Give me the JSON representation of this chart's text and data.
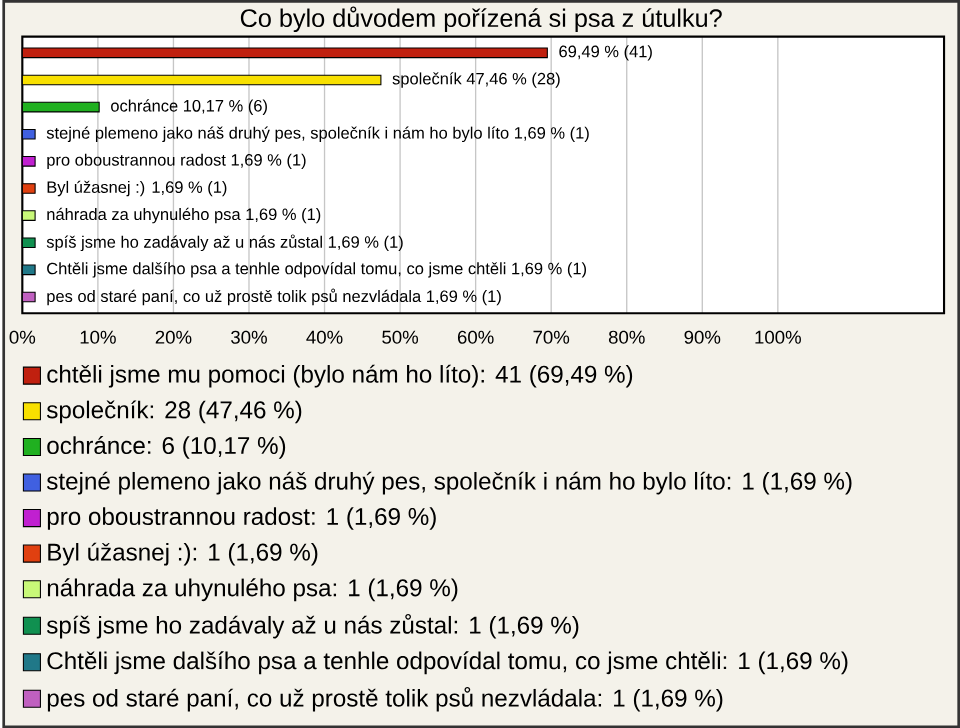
{
  "chart_data": {
    "type": "bar",
    "orientation": "horizontal",
    "title": "Co bylo důvodem pořízená si psa z útulku?",
    "categories": [
      null,
      null,
      null,
      null,
      null,
      null,
      null,
      null,
      null,
      null
    ],
    "xlim": [
      0,
      122
    ],
    "xticks": [
      {
        "value": 0,
        "label": "0%"
      },
      {
        "value": 10,
        "label": "10%"
      },
      {
        "value": 20,
        "label": "20%"
      },
      {
        "value": 30,
        "label": "30%"
      },
      {
        "value": 40,
        "label": "40%"
      },
      {
        "value": 50,
        "label": "50%"
      },
      {
        "value": 60,
        "label": "60%"
      },
      {
        "value": 70,
        "label": "70%"
      },
      {
        "value": 80,
        "label": "80%"
      },
      {
        "value": 90,
        "label": "90%"
      },
      {
        "value": 100,
        "label": "100%"
      }
    ],
    "grid": "x",
    "legend": "bottom",
    "tick_labels": "x",
    "series": [
      {
        "name": "chtěli jsme mu pomoci (bylo nám ho líto): 41 (69,49 %)",
        "color": "#c0200f",
        "values": [
          69.49,
          null,
          null,
          null,
          null,
          null,
          null,
          null,
          null,
          null
        ],
        "value_labels": [
          "69,49 % (41)",
          null,
          null,
          null,
          null,
          null,
          null,
          null,
          null,
          null
        ]
      },
      {
        "name": "společník: 28 (47,46 %)",
        "color": "#f8e000",
        "values": [
          null,
          47.46,
          null,
          null,
          null,
          null,
          null,
          null,
          null,
          null
        ],
        "value_labels": [
          null,
          "společník 47,46 % (28)",
          null,
          null,
          null,
          null,
          null,
          null,
          null,
          null
        ]
      },
      {
        "name": "ochránce: 6 (10,17 %)",
        "color": "#20b020",
        "values": [
          null,
          null,
          10.17,
          null,
          null,
          null,
          null,
          null,
          null,
          null
        ],
        "value_labels": [
          null,
          null,
          "ochránce 10,17 % (6)",
          null,
          null,
          null,
          null,
          null,
          null,
          null
        ]
      },
      {
        "name": "stejné plemeno jako náš druhý pes, společník i nám ho bylo líto: 1 (1,69 %)",
        "color": "#4060e0",
        "values": [
          null,
          null,
          null,
          1.69,
          null,
          null,
          null,
          null,
          null,
          null
        ],
        "value_labels": [
          null,
          null,
          null,
          "stejné plemeno jako náš druhý pes, společník i nám ho bylo líto 1,69 % (1)",
          null,
          null,
          null,
          null,
          null,
          null
        ]
      },
      {
        "name": "pro oboustrannou radost: 1 (1,69 %)",
        "color": "#c020d0",
        "values": [
          null,
          null,
          null,
          null,
          1.69,
          null,
          null,
          null,
          null,
          null
        ],
        "value_labels": [
          null,
          null,
          null,
          null,
          "pro oboustrannou radost 1,69 % (1)",
          null,
          null,
          null,
          null,
          null
        ]
      },
      {
        "name": "Byl úžasnej :): 1 (1,69 %)",
        "color": "#e04010",
        "values": [
          null,
          null,
          null,
          null,
          null,
          1.69,
          null,
          null,
          null,
          null
        ],
        "value_labels": [
          null,
          null,
          null,
          null,
          null,
          "Byl úžasnej :) 1,69 % (1)",
          null,
          null,
          null,
          null
        ]
      },
      {
        "name": "náhrada za uhynulého psa: 1 (1,69 %)",
        "color": "#c8f878",
        "values": [
          null,
          null,
          null,
          null,
          null,
          null,
          1.69,
          null,
          null,
          null
        ],
        "value_labels": [
          null,
          null,
          null,
          null,
          null,
          null,
          "náhrada za uhynulého psa 1,69 % (1)",
          null,
          null,
          null
        ]
      },
      {
        "name": "spíš jsme ho zadávaly až  u nás zůstal: 1 (1,69 %)",
        "color": "#109050",
        "values": [
          null,
          null,
          null,
          null,
          null,
          null,
          null,
          1.69,
          null,
          null
        ],
        "value_labels": [
          null,
          null,
          null,
          null,
          null,
          null,
          null,
          "spíš jsme ho zadávaly až  u nás zůstal 1,69 % (1)",
          null,
          null
        ]
      },
      {
        "name": "Chtěli jsme dalšího psa a tenhle odpovídal tomu, co jsme chtěli: 1 (1,69 %)",
        "color": "#207888",
        "values": [
          null,
          null,
          null,
          null,
          null,
          null,
          null,
          null,
          1.69,
          null
        ],
        "value_labels": [
          null,
          null,
          null,
          null,
          null,
          null,
          null,
          null,
          "Chtěli jsme dalšího psa a tenhle odpovídal tomu, co jsme chtěli 1,69 % (1)",
          null
        ]
      },
      {
        "name": "pes od staré paní, co už prostě tolik psů nezvládala: 1 (1,69 %)",
        "color": "#c060c0",
        "values": [
          null,
          null,
          null,
          null,
          null,
          null,
          null,
          null,
          null,
          1.69
        ],
        "value_labels": [
          null,
          null,
          null,
          null,
          null,
          null,
          null,
          null,
          null,
          "pes od staré paní, co už prostě tolik psů nezvládala 1,69 % (1)"
        ]
      }
    ]
  }
}
